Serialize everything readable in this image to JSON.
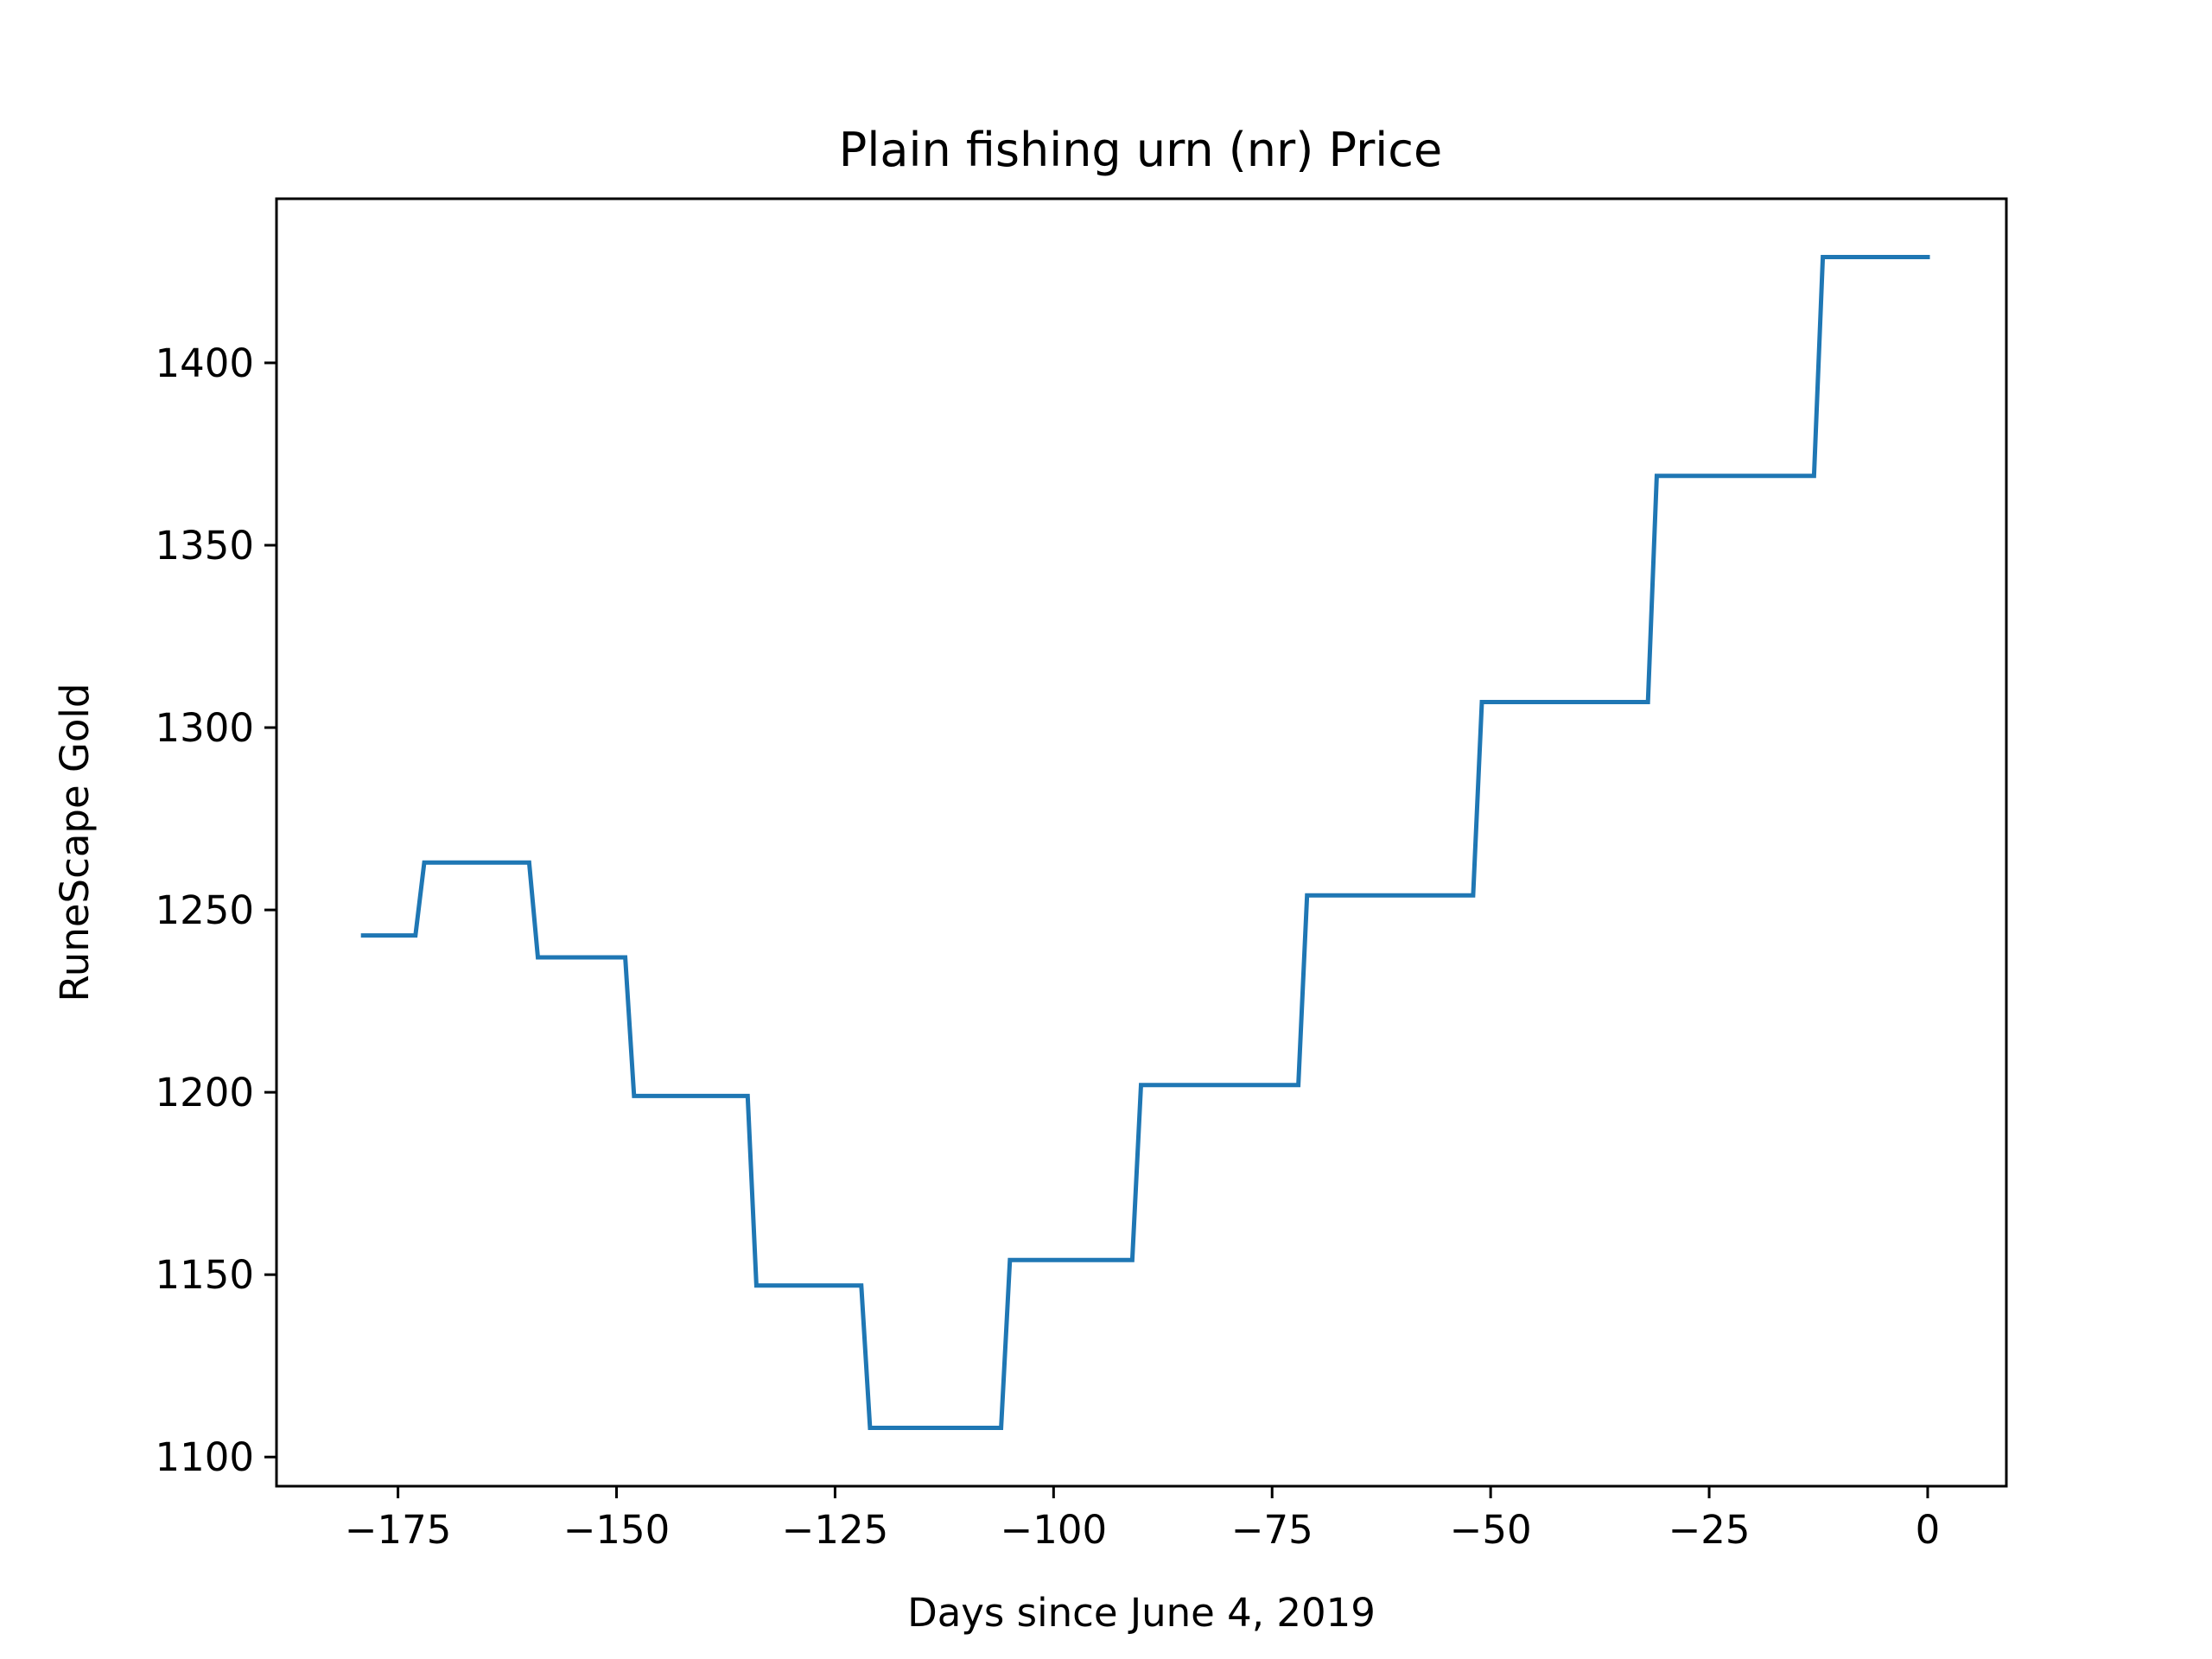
{
  "chart_data": {
    "type": "line",
    "title": "Plain fishing urn (nr) Price",
    "xlabel": "Days since June 4, 2019",
    "ylabel": "RuneScape Gold",
    "xlim": [
      -188.9,
      9
    ],
    "ylim": [
      1092,
      1445
    ],
    "x_ticks": [
      -175,
      -150,
      -125,
      -100,
      -75,
      -50,
      -25,
      0
    ],
    "x_tick_labels": [
      "−175",
      "−150",
      "−125",
      "−100",
      "−75",
      "−50",
      "−25",
      "0"
    ],
    "y_ticks": [
      1100,
      1150,
      1200,
      1250,
      1300,
      1350,
      1400
    ],
    "y_tick_labels": [
      "1100",
      "1150",
      "1200",
      "1250",
      "1300",
      "1350",
      "1400"
    ],
    "grid": false,
    "color": "#1f77b4",
    "series": [
      {
        "x": [
          -179,
          -173,
          -172,
          -160,
          -159,
          -149,
          -148,
          -135,
          -134,
          -122,
          -121,
          -106,
          -105,
          -91,
          -90,
          -72,
          -71,
          -52,
          -51,
          -32,
          -31,
          -13,
          -12,
          0
        ],
        "y": [
          1243,
          1243,
          1263,
          1263,
          1237,
          1237,
          1199,
          1199,
          1147,
          1147,
          1108,
          1108,
          1154,
          1154,
          1202,
          1202,
          1254,
          1254,
          1307,
          1307,
          1369,
          1369,
          1429,
          1429
        ]
      }
    ]
  }
}
